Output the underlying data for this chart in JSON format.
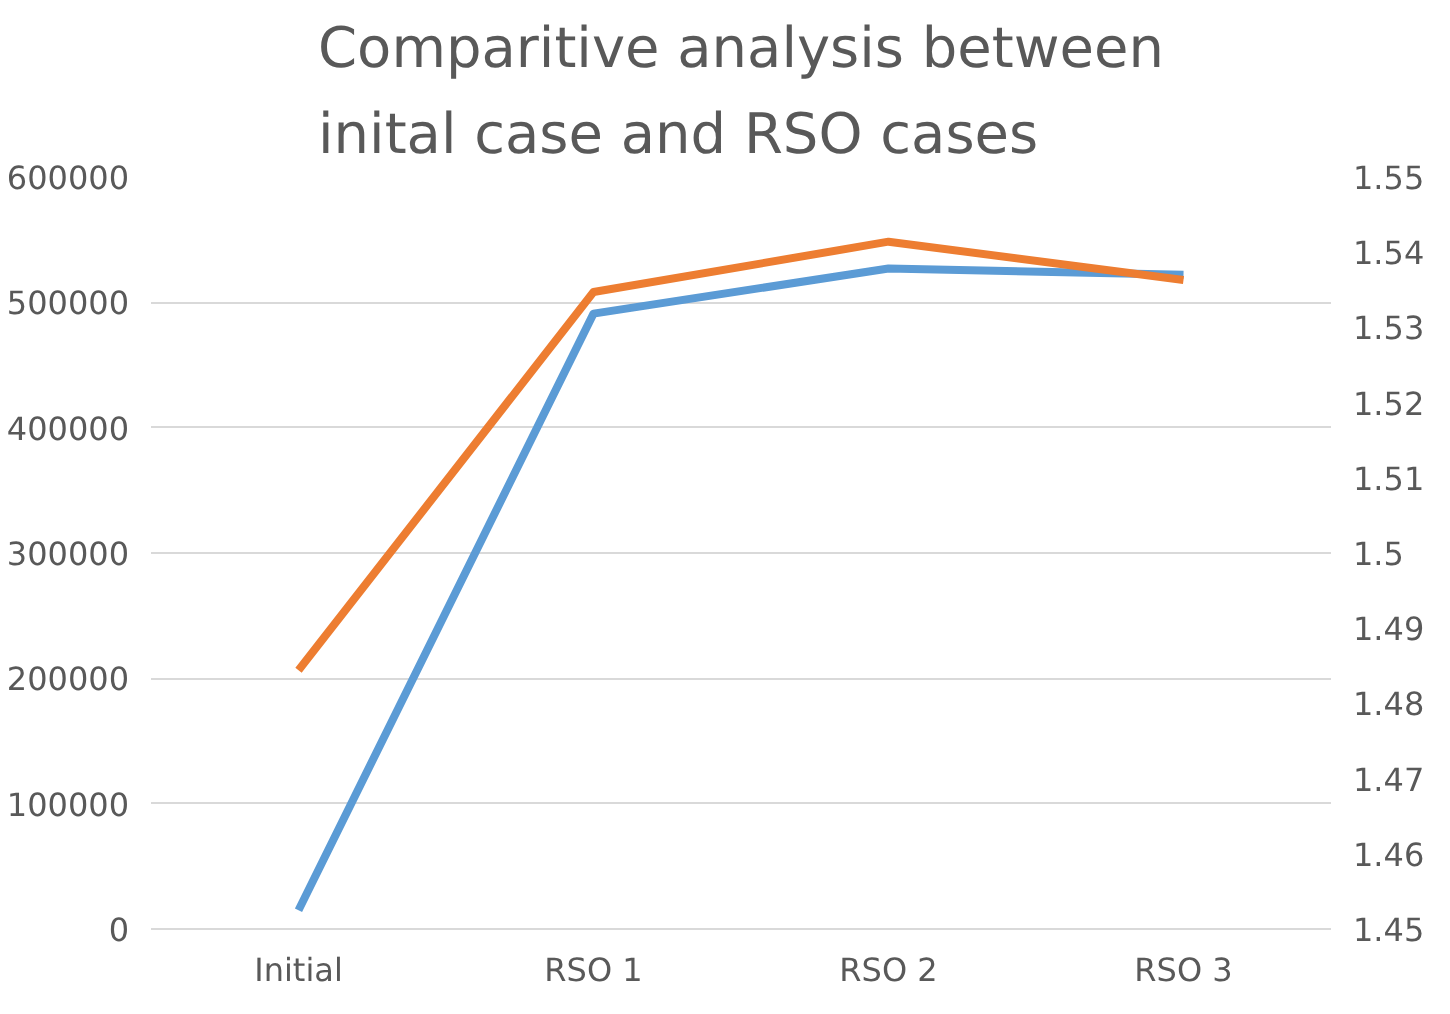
{
  "chart_data": {
    "type": "line",
    "title": "Comparitive analysis between inital case and RSO cases",
    "categories": [
      "Initial",
      "RSO 1",
      "RSO 2",
      "RSO 3"
    ],
    "series": [
      {
        "color": "#5b9bd5",
        "values": [
          15000,
          491000,
          527000,
          522000
        ]
      },
      {
        "color": "#ed7d31",
        "axis": "y2",
        "values": [
          1.4844,
          1.5347,
          1.5414,
          1.5363
        ]
      }
    ],
    "ylim": [
      0,
      600000
    ],
    "yticks": [
      0,
      100000,
      200000,
      300000,
      400000,
      500000,
      600000
    ],
    "y2lim": [
      1.45,
      1.55
    ],
    "y2ticks": [
      {
        "value": 1.45,
        "label": "1.45"
      },
      {
        "value": 1.46,
        "label": "1.46"
      },
      {
        "value": 1.47,
        "label": "1.47"
      },
      {
        "value": 1.48,
        "label": "1.48"
      },
      {
        "value": 1.49,
        "label": "1.49"
      },
      {
        "value": 1.5,
        "label": "1.5"
      },
      {
        "value": 1.51,
        "label": "1.51"
      },
      {
        "value": 1.52,
        "label": "1.52"
      },
      {
        "value": 1.53,
        "label": "1.53"
      },
      {
        "value": 1.54,
        "label": "1.54"
      },
      {
        "value": 1.55,
        "label": "1.55"
      }
    ],
    "grid": "y",
    "marker": "none",
    "line_style": "solid"
  }
}
